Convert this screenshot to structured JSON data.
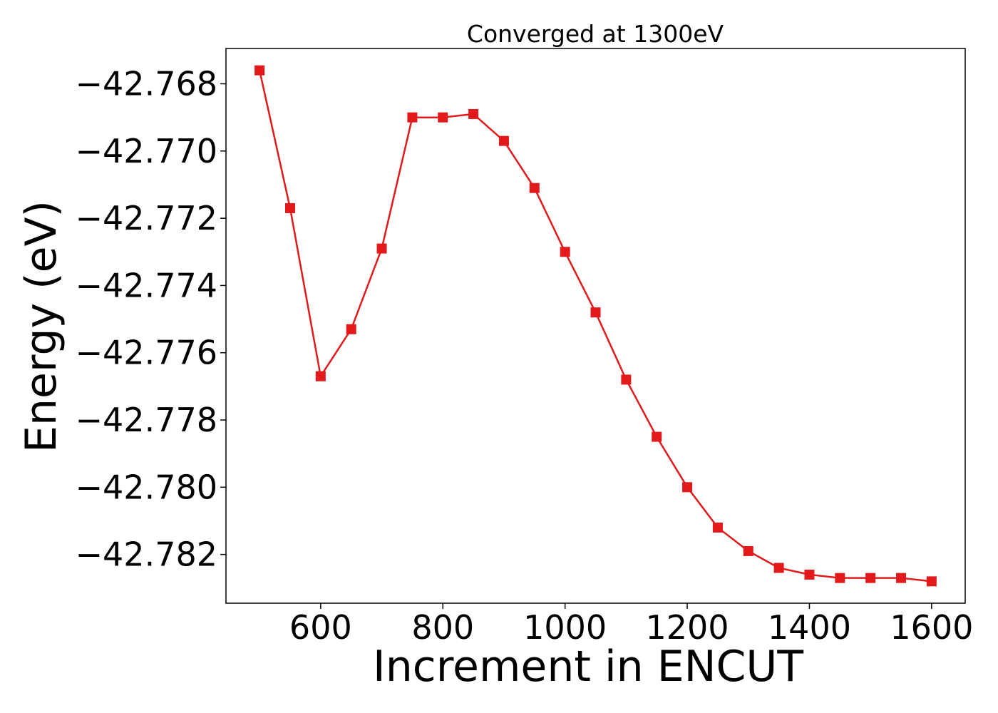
{
  "chart_data": {
    "type": "line",
    "title": "Converged at 1300eV",
    "xlabel": "Increment in ENCUT",
    "ylabel": "Energy (eV)",
    "xlim": [
      445,
      1655
    ],
    "ylim": [
      -42.78345,
      -42.76695
    ],
    "x_ticks": [
      600,
      800,
      1000,
      1200,
      1400,
      1600
    ],
    "x_tick_labels": [
      "600",
      "800",
      "1000",
      "1200",
      "1400",
      "1600"
    ],
    "y_ticks": [
      -42.768,
      -42.77,
      -42.772,
      -42.774,
      -42.776,
      -42.778,
      -42.78,
      -42.782
    ],
    "y_tick_labels": [
      "−42.768",
      "−42.770",
      "−42.772",
      "−42.774",
      "−42.776",
      "−42.778",
      "−42.780",
      "−42.782"
    ],
    "grid": false,
    "series": [
      {
        "color": "#e31a1c",
        "marker": "square",
        "x": [
          500,
          550,
          600,
          650,
          700,
          750,
          800,
          850,
          900,
          950,
          1000,
          1050,
          1100,
          1150,
          1200,
          1250,
          1300,
          1350,
          1400,
          1450,
          1500,
          1550,
          1600
        ],
        "y": [
          -42.7676,
          -42.7717,
          -42.7767,
          -42.7753,
          -42.7729,
          -42.769,
          -42.769,
          -42.7689,
          -42.7697,
          -42.7711,
          -42.773,
          -42.7748,
          -42.7768,
          -42.7785,
          -42.78,
          -42.7812,
          -42.7819,
          -42.7824,
          -42.7826,
          -42.7827,
          -42.7827,
          -42.7827,
          -42.7828
        ]
      }
    ]
  }
}
